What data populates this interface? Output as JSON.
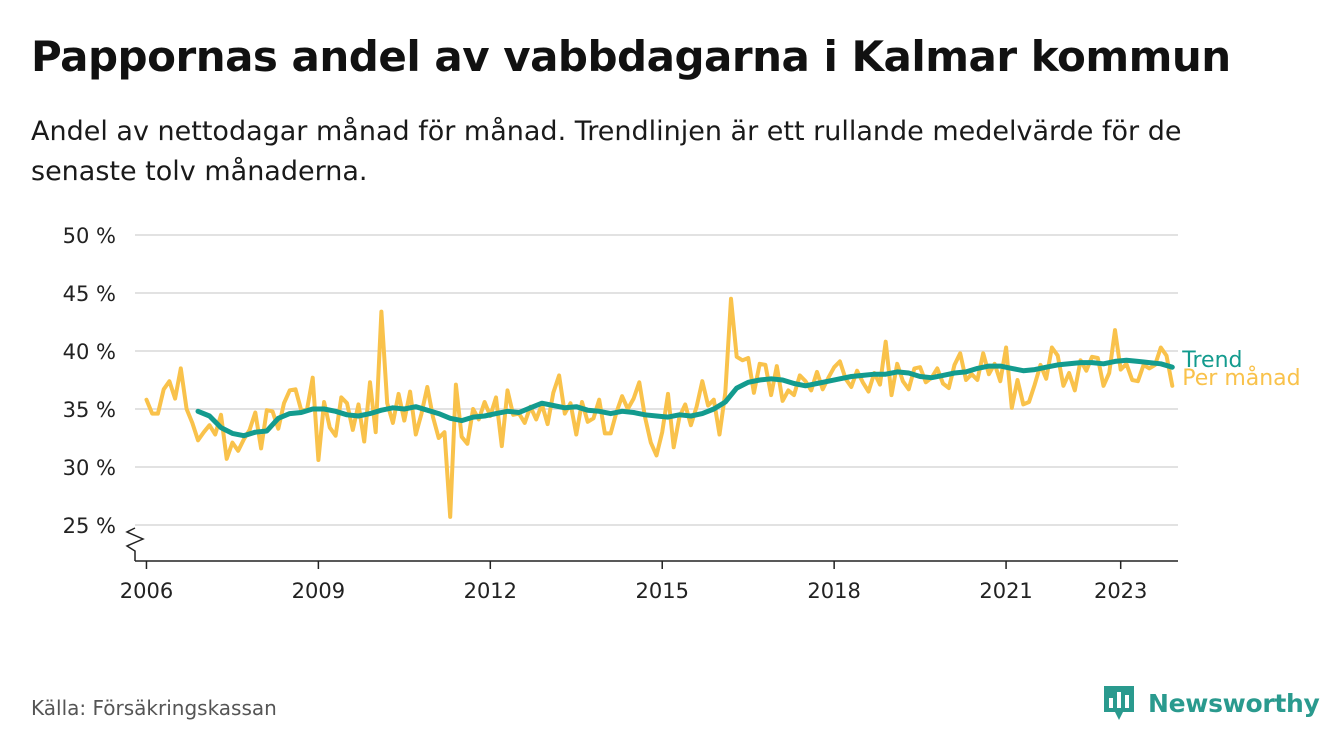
{
  "title": "Pappornas andel av vabbdagarna i Kalmar kommun",
  "subtitle": "Andel av nettodagar månad för månad. Trendlinjen är ett rullande medelvärde för de senaste tolv månaderna.",
  "source": "Källa: Försäkringskassan",
  "brand": "Newsworthy",
  "colors": {
    "monthly": "#f9c24b",
    "trend": "#139b8e",
    "grid": "#d9d9d9",
    "axis": "#222222",
    "brand": "#2a9a8e"
  },
  "chart_data": {
    "type": "line",
    "x_unit": "year (decimal)",
    "y_unit": "%",
    "ylim": [
      25,
      50
    ],
    "xlim": [
      2005.8,
      2024.0
    ],
    "y_ticks": [
      {
        "value": 25,
        "label": "25 %"
      },
      {
        "value": 30,
        "label": "30 %"
      },
      {
        "value": 35,
        "label": "35 %"
      },
      {
        "value": 40,
        "label": "40 %"
      },
      {
        "value": 45,
        "label": "45 %"
      },
      {
        "value": 50,
        "label": "50 %"
      }
    ],
    "x_ticks": [
      {
        "value": 2006,
        "label": "2006"
      },
      {
        "value": 2009,
        "label": "2009"
      },
      {
        "value": 2012,
        "label": "2012"
      },
      {
        "value": 2015,
        "label": "2015"
      },
      {
        "value": 2018,
        "label": "2018"
      },
      {
        "value": 2021,
        "label": "2021"
      },
      {
        "value": 2023,
        "label": "2023"
      }
    ],
    "grid": true,
    "axis_break": true,
    "series": [
      {
        "name": "Per månad",
        "color": "#f9c24b",
        "points": [
          [
            2006.0,
            35.8
          ],
          [
            2006.1,
            34.6
          ],
          [
            2006.2,
            34.6
          ],
          [
            2006.3,
            36.7
          ],
          [
            2006.4,
            37.4
          ],
          [
            2006.5,
            35.9
          ],
          [
            2006.6,
            38.5
          ],
          [
            2006.7,
            35.0
          ],
          [
            2006.8,
            33.8
          ],
          [
            2006.9,
            32.3
          ],
          [
            2007.0,
            33.0
          ],
          [
            2007.1,
            33.6
          ],
          [
            2007.2,
            32.8
          ],
          [
            2007.3,
            34.5
          ],
          [
            2007.4,
            30.7
          ],
          [
            2007.5,
            32.1
          ],
          [
            2007.6,
            31.4
          ],
          [
            2007.7,
            32.4
          ],
          [
            2007.8,
            33.2
          ],
          [
            2007.9,
            34.7
          ],
          [
            2008.0,
            31.6
          ],
          [
            2008.1,
            34.9
          ],
          [
            2008.2,
            34.8
          ],
          [
            2008.3,
            33.3
          ],
          [
            2008.4,
            35.5
          ],
          [
            2008.5,
            36.6
          ],
          [
            2008.6,
            36.7
          ],
          [
            2008.7,
            34.9
          ],
          [
            2008.8,
            34.9
          ],
          [
            2008.9,
            37.7
          ],
          [
            2009.0,
            30.6
          ],
          [
            2009.1,
            35.6
          ],
          [
            2009.2,
            33.4
          ],
          [
            2009.3,
            32.7
          ],
          [
            2009.4,
            36.0
          ],
          [
            2009.5,
            35.5
          ],
          [
            2009.6,
            33.2
          ],
          [
            2009.7,
            35.4
          ],
          [
            2009.8,
            32.2
          ],
          [
            2009.9,
            37.3
          ],
          [
            2010.0,
            33.0
          ],
          [
            2010.1,
            43.4
          ],
          [
            2010.2,
            35.5
          ],
          [
            2010.3,
            33.8
          ],
          [
            2010.4,
            36.3
          ],
          [
            2010.5,
            34.0
          ],
          [
            2010.6,
            36.5
          ],
          [
            2010.7,
            32.8
          ],
          [
            2010.8,
            34.6
          ],
          [
            2010.9,
            36.9
          ],
          [
            2011.0,
            34.3
          ],
          [
            2011.1,
            32.5
          ],
          [
            2011.2,
            33.0
          ],
          [
            2011.3,
            25.7
          ],
          [
            2011.4,
            37.1
          ],
          [
            2011.5,
            32.6
          ],
          [
            2011.6,
            32.0
          ],
          [
            2011.7,
            35.0
          ],
          [
            2011.8,
            34.1
          ],
          [
            2011.9,
            35.6
          ],
          [
            2012.0,
            34.4
          ],
          [
            2012.1,
            36.0
          ],
          [
            2012.2,
            31.8
          ],
          [
            2012.3,
            36.6
          ],
          [
            2012.4,
            34.5
          ],
          [
            2012.5,
            34.6
          ],
          [
            2012.6,
            33.8
          ],
          [
            2012.7,
            35.2
          ],
          [
            2012.8,
            34.1
          ],
          [
            2012.9,
            35.4
          ],
          [
            2013.0,
            33.7
          ],
          [
            2013.1,
            36.4
          ],
          [
            2013.2,
            37.9
          ],
          [
            2013.3,
            34.6
          ],
          [
            2013.4,
            35.5
          ],
          [
            2013.5,
            32.8
          ],
          [
            2013.6,
            35.6
          ],
          [
            2013.7,
            33.9
          ],
          [
            2013.8,
            34.2
          ],
          [
            2013.9,
            35.8
          ],
          [
            2014.0,
            32.9
          ],
          [
            2014.1,
            32.9
          ],
          [
            2014.2,
            34.7
          ],
          [
            2014.3,
            36.1
          ],
          [
            2014.4,
            35.0
          ],
          [
            2014.5,
            35.9
          ],
          [
            2014.6,
            37.3
          ],
          [
            2014.7,
            34.3
          ],
          [
            2014.8,
            32.1
          ],
          [
            2014.9,
            31.0
          ],
          [
            2015.0,
            33.0
          ],
          [
            2015.1,
            36.3
          ],
          [
            2015.2,
            31.7
          ],
          [
            2015.3,
            34.3
          ],
          [
            2015.4,
            35.4
          ],
          [
            2015.5,
            33.6
          ],
          [
            2015.6,
            35.2
          ],
          [
            2015.7,
            37.4
          ],
          [
            2015.8,
            35.3
          ],
          [
            2015.9,
            35.8
          ],
          [
            2016.0,
            32.8
          ],
          [
            2016.1,
            36.4
          ],
          [
            2016.2,
            44.5
          ],
          [
            2016.3,
            39.5
          ],
          [
            2016.4,
            39.2
          ],
          [
            2016.5,
            39.4
          ],
          [
            2016.6,
            36.4
          ],
          [
            2016.7,
            38.9
          ],
          [
            2016.8,
            38.8
          ],
          [
            2016.9,
            36.2
          ],
          [
            2017.0,
            38.7
          ],
          [
            2017.1,
            35.7
          ],
          [
            2017.2,
            36.6
          ],
          [
            2017.3,
            36.2
          ],
          [
            2017.4,
            37.9
          ],
          [
            2017.5,
            37.4
          ],
          [
            2017.6,
            36.6
          ],
          [
            2017.7,
            38.2
          ],
          [
            2017.8,
            36.7
          ],
          [
            2017.9,
            37.7
          ],
          [
            2018.0,
            38.6
          ],
          [
            2018.1,
            39.1
          ],
          [
            2018.2,
            37.6
          ],
          [
            2018.3,
            36.9
          ],
          [
            2018.4,
            38.3
          ],
          [
            2018.5,
            37.3
          ],
          [
            2018.6,
            36.5
          ],
          [
            2018.7,
            38.1
          ],
          [
            2018.8,
            37.1
          ],
          [
            2018.9,
            40.8
          ],
          [
            2019.0,
            36.2
          ],
          [
            2019.1,
            38.9
          ],
          [
            2019.2,
            37.4
          ],
          [
            2019.3,
            36.7
          ],
          [
            2019.4,
            38.5
          ],
          [
            2019.5,
            38.6
          ],
          [
            2019.6,
            37.3
          ],
          [
            2019.7,
            37.7
          ],
          [
            2019.8,
            38.5
          ],
          [
            2019.9,
            37.2
          ],
          [
            2020.0,
            36.8
          ],
          [
            2020.1,
            38.8
          ],
          [
            2020.2,
            39.8
          ],
          [
            2020.3,
            37.5
          ],
          [
            2020.4,
            38.0
          ],
          [
            2020.5,
            37.5
          ],
          [
            2020.6,
            39.8
          ],
          [
            2020.7,
            38.0
          ],
          [
            2020.8,
            38.9
          ],
          [
            2020.9,
            37.4
          ],
          [
            2021.0,
            40.3
          ],
          [
            2021.1,
            35.1
          ],
          [
            2021.2,
            37.5
          ],
          [
            2021.3,
            35.4
          ],
          [
            2021.4,
            35.6
          ],
          [
            2021.5,
            37.1
          ],
          [
            2021.6,
            38.8
          ],
          [
            2021.7,
            37.6
          ],
          [
            2021.8,
            40.3
          ],
          [
            2021.9,
            39.6
          ],
          [
            2022.0,
            37.0
          ],
          [
            2022.1,
            38.1
          ],
          [
            2022.2,
            36.6
          ],
          [
            2022.3,
            39.2
          ],
          [
            2022.4,
            38.3
          ],
          [
            2022.5,
            39.5
          ],
          [
            2022.6,
            39.4
          ],
          [
            2022.7,
            37.0
          ],
          [
            2022.8,
            38.1
          ],
          [
            2022.9,
            41.8
          ],
          [
            2023.0,
            38.4
          ],
          [
            2023.1,
            38.9
          ],
          [
            2023.2,
            37.5
          ],
          [
            2023.3,
            37.4
          ],
          [
            2023.4,
            38.8
          ],
          [
            2023.5,
            38.5
          ],
          [
            2023.6,
            38.8
          ],
          [
            2023.7,
            40.3
          ],
          [
            2023.8,
            39.6
          ],
          [
            2023.9,
            37.0
          ]
        ]
      },
      {
        "name": "Trend",
        "color": "#139b8e",
        "points": [
          [
            2006.9,
            34.8
          ],
          [
            2007.1,
            34.4
          ],
          [
            2007.3,
            33.4
          ],
          [
            2007.5,
            32.9
          ],
          [
            2007.7,
            32.7
          ],
          [
            2007.9,
            33.0
          ],
          [
            2008.1,
            33.1
          ],
          [
            2008.3,
            34.2
          ],
          [
            2008.5,
            34.6
          ],
          [
            2008.7,
            34.7
          ],
          [
            2008.9,
            35.0
          ],
          [
            2009.1,
            35.0
          ],
          [
            2009.3,
            34.8
          ],
          [
            2009.5,
            34.5
          ],
          [
            2009.7,
            34.4
          ],
          [
            2009.9,
            34.6
          ],
          [
            2010.1,
            34.9
          ],
          [
            2010.3,
            35.1
          ],
          [
            2010.5,
            35.0
          ],
          [
            2010.7,
            35.2
          ],
          [
            2010.9,
            34.9
          ],
          [
            2011.1,
            34.6
          ],
          [
            2011.3,
            34.2
          ],
          [
            2011.5,
            34.0
          ],
          [
            2011.7,
            34.3
          ],
          [
            2011.9,
            34.4
          ],
          [
            2012.1,
            34.6
          ],
          [
            2012.3,
            34.8
          ],
          [
            2012.5,
            34.7
          ],
          [
            2012.7,
            35.1
          ],
          [
            2012.9,
            35.5
          ],
          [
            2013.1,
            35.3
          ],
          [
            2013.3,
            35.1
          ],
          [
            2013.5,
            35.2
          ],
          [
            2013.7,
            34.9
          ],
          [
            2013.9,
            34.8
          ],
          [
            2014.1,
            34.6
          ],
          [
            2014.3,
            34.8
          ],
          [
            2014.5,
            34.7
          ],
          [
            2014.7,
            34.5
          ],
          [
            2014.9,
            34.4
          ],
          [
            2015.1,
            34.3
          ],
          [
            2015.3,
            34.5
          ],
          [
            2015.5,
            34.4
          ],
          [
            2015.7,
            34.6
          ],
          [
            2015.9,
            35.0
          ],
          [
            2016.1,
            35.6
          ],
          [
            2016.3,
            36.8
          ],
          [
            2016.5,
            37.3
          ],
          [
            2016.7,
            37.5
          ],
          [
            2016.9,
            37.6
          ],
          [
            2017.1,
            37.5
          ],
          [
            2017.3,
            37.2
          ],
          [
            2017.5,
            37.0
          ],
          [
            2017.7,
            37.2
          ],
          [
            2017.9,
            37.4
          ],
          [
            2018.1,
            37.6
          ],
          [
            2018.3,
            37.8
          ],
          [
            2018.5,
            37.9
          ],
          [
            2018.7,
            38.0
          ],
          [
            2018.9,
            38.0
          ],
          [
            2019.1,
            38.2
          ],
          [
            2019.3,
            38.1
          ],
          [
            2019.5,
            37.8
          ],
          [
            2019.7,
            37.7
          ],
          [
            2019.9,
            37.9
          ],
          [
            2020.1,
            38.1
          ],
          [
            2020.3,
            38.2
          ],
          [
            2020.5,
            38.5
          ],
          [
            2020.7,
            38.7
          ],
          [
            2020.9,
            38.7
          ],
          [
            2021.1,
            38.5
          ],
          [
            2021.3,
            38.3
          ],
          [
            2021.5,
            38.4
          ],
          [
            2021.7,
            38.6
          ],
          [
            2021.9,
            38.8
          ],
          [
            2022.1,
            38.9
          ],
          [
            2022.3,
            39.0
          ],
          [
            2022.5,
            39.0
          ],
          [
            2022.7,
            38.9
          ],
          [
            2022.9,
            39.1
          ],
          [
            2023.1,
            39.2
          ],
          [
            2023.3,
            39.1
          ],
          [
            2023.5,
            39.0
          ],
          [
            2023.7,
            38.9
          ],
          [
            2023.9,
            38.6
          ]
        ]
      }
    ]
  }
}
